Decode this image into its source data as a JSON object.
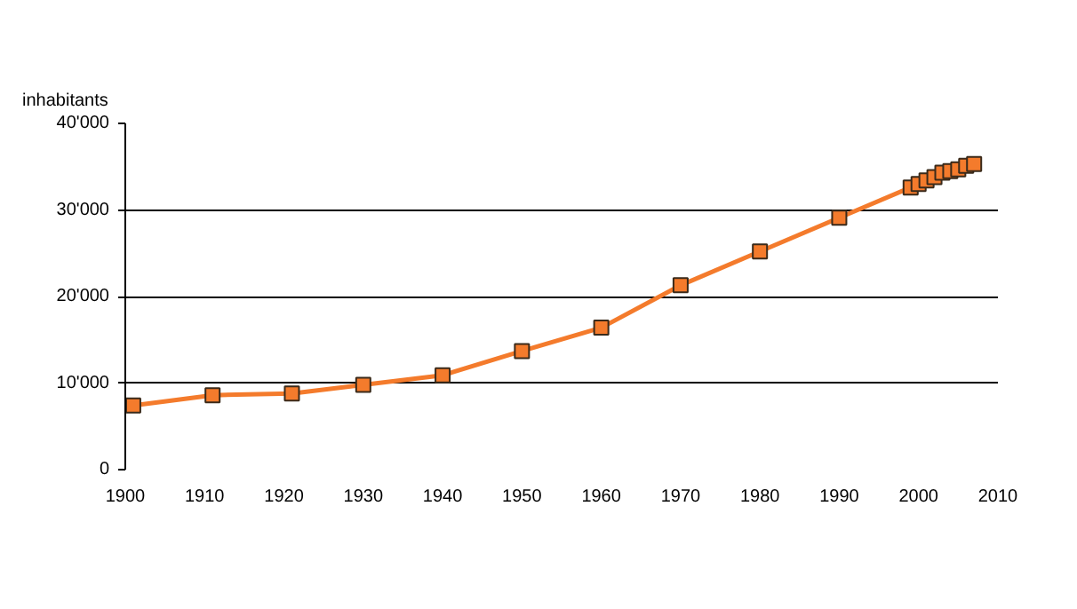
{
  "chart_data": {
    "type": "line",
    "ylabel": "inhabitants",
    "x": [
      1901,
      1911,
      1921,
      1930,
      1940,
      1950,
      1960,
      1970,
      1980,
      1990,
      1999,
      2000,
      2001,
      2002,
      2003,
      2004,
      2005,
      2006,
      2007
    ],
    "series": [
      {
        "color": "#f47b2c",
        "values": [
          7400,
          8600,
          8800,
          9800,
          10900,
          13700,
          16400,
          21300,
          25200,
          29100,
          32600,
          33000,
          33400,
          33800,
          34300,
          34500,
          34700,
          35100,
          35300
        ]
      }
    ],
    "xlim": [
      1900,
      2010
    ],
    "xticks": [
      1900,
      1910,
      1920,
      1930,
      1940,
      1950,
      1960,
      1970,
      1980,
      1990,
      2000,
      2010
    ],
    "ylim": [
      0,
      40000
    ],
    "yticks": [
      0,
      {
        "value": 10000,
        "label": "10'000"
      },
      {
        "value": 20000,
        "label": "20'000"
      },
      {
        "value": 30000,
        "label": "30'000"
      },
      {
        "value": 40000,
        "label": "40'000"
      }
    ],
    "grid": "y",
    "marker": "square",
    "line_style": "solid"
  }
}
